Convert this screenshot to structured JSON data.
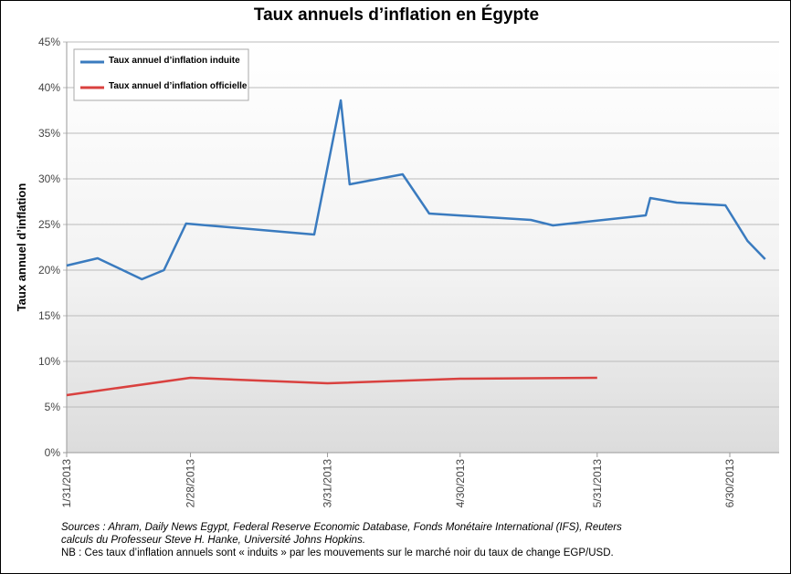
{
  "chart_data": {
    "type": "line",
    "title": "Taux annuels d’inflation en Égypte",
    "xlabel": "",
    "ylabel": "Taux annuel d’inflation",
    "ylim": [
      0,
      45
    ],
    "yticks": [
      "0%",
      "5%",
      "10%",
      "15%",
      "20%",
      "25%",
      "30%",
      "35%",
      "40%",
      "45%"
    ],
    "xticks": [
      "1/31/2013",
      "2/28/2013",
      "3/31/2013",
      "4/30/2013",
      "5/31/2013",
      "6/30/2013"
    ],
    "xtick_dates": [
      "2013-01-31",
      "2013-02-28",
      "2013-03-31",
      "2013-04-30",
      "2013-05-31",
      "2013-06-30"
    ],
    "grid": true,
    "legend_position": "top-left",
    "series": [
      {
        "name": "Taux annuel d’inflation induite",
        "color": "#3a7bbf",
        "x": [
          "2013-01-31",
          "2013-02-07",
          "2013-02-17",
          "2013-02-22",
          "2013-02-27",
          "2013-03-28",
          "2013-04-03",
          "2013-04-05",
          "2013-04-17",
          "2013-04-23",
          "2013-05-16",
          "2013-05-21",
          "2013-06-11",
          "2013-06-12",
          "2013-06-18",
          "2013-06-29",
          "2013-07-04",
          "2013-07-08"
        ],
        "values": [
          20.5,
          21.3,
          19.0,
          20.0,
          25.1,
          23.9,
          38.6,
          29.4,
          30.5,
          26.2,
          25.5,
          24.9,
          26.0,
          27.9,
          27.4,
          27.1,
          23.2,
          21.2
        ]
      },
      {
        "name": "Taux annuel d’inflation officielle",
        "color": "#d9413f",
        "x": [
          "2013-01-31",
          "2013-02-28",
          "2013-03-31",
          "2013-04-30",
          "2013-05-31"
        ],
        "values": [
          6.3,
          8.2,
          7.6,
          8.1,
          8.2
        ]
      }
    ]
  },
  "notes": {
    "sources": "Sources : Ahram, Daily News Egypt, Federal Reserve Economic Database, Fonds Monétaire International (IFS), Reuters",
    "calculs": "calculs du Professeur Steve H. Hanke, Université Johns Hopkins.",
    "nb": "NB : Ces taux d’inflation annuels sont « induits » par les mouvements sur le marché noir du taux de change EGP/USD."
  }
}
